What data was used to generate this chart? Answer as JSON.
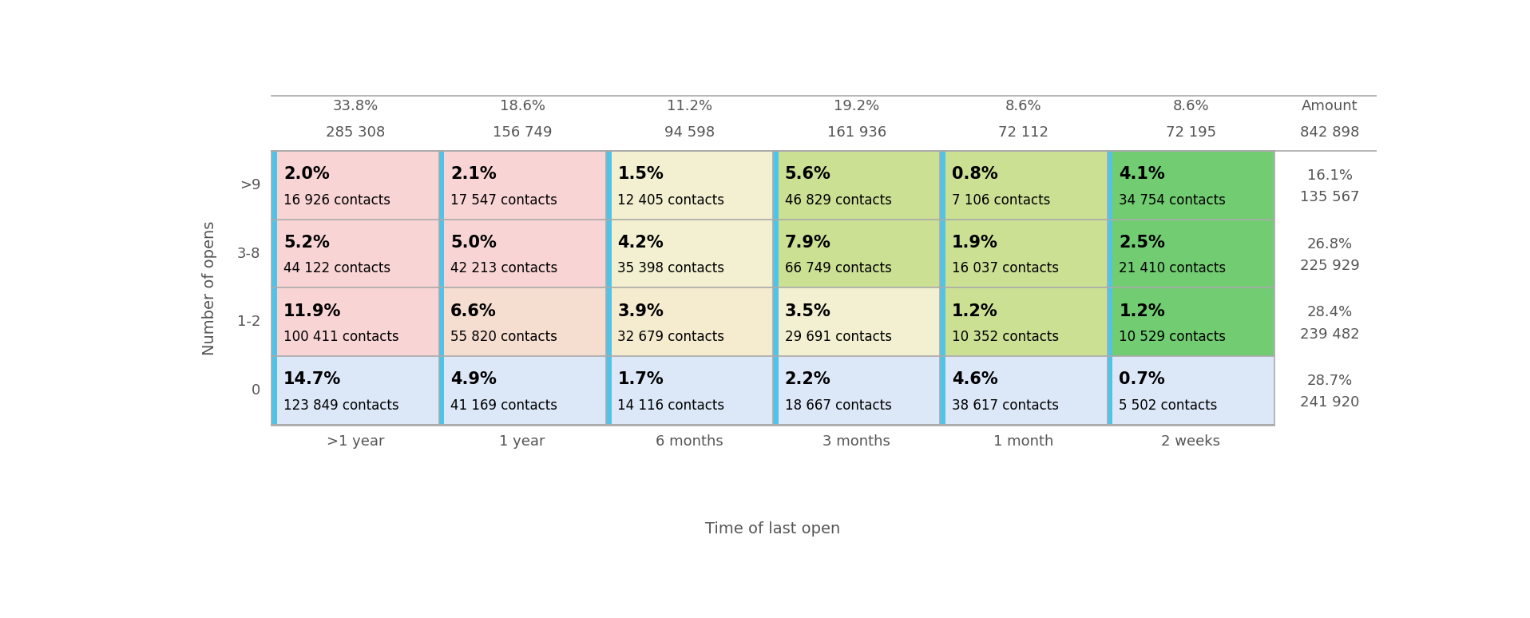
{
  "col_labels": [
    ">1 year",
    "1 year",
    "6 months",
    "3 months",
    "1 month",
    "2 weeks"
  ],
  "col_pcts": [
    "33.8%",
    "18.6%",
    "11.2%",
    "19.2%",
    "8.6%",
    "8.6%"
  ],
  "col_counts": [
    "285 308",
    "156 749",
    "94 598",
    "161 936",
    "72 112",
    "72 195"
  ],
  "col_amount_label": "Amount",
  "col_amount_count": "842 898",
  "row_labels": [
    ">9",
    "3-8",
    "1-2",
    "0"
  ],
  "row_amount_pcts": [
    "16.1%",
    "26.8%",
    "28.4%",
    "28.7%"
  ],
  "row_amount_counts": [
    "135 567",
    "225 929",
    "239 482",
    "241 920"
  ],
  "ylabel": "Number of opens",
  "xlabel": "Time of last open",
  "cells": [
    [
      {
        "pct": "2.0%",
        "contacts": "16 926 contacts",
        "bg": "#f9d4d5",
        "bar": "#4ec4ea"
      },
      {
        "pct": "2.1%",
        "contacts": "17 547 contacts",
        "bg": "#f9d4d5",
        "bar": "#4ec4ea"
      },
      {
        "pct": "1.5%",
        "contacts": "12 405 contacts",
        "bg": "#f2f0d0",
        "bar": "#4ec4ea"
      },
      {
        "pct": "5.6%",
        "contacts": "46 829 contacts",
        "bg": "#cce094",
        "bar": "#4ec4ea"
      },
      {
        "pct": "0.8%",
        "contacts": "7 106 contacts",
        "bg": "#cce094",
        "bar": "#4ec4ea"
      },
      {
        "pct": "4.1%",
        "contacts": "34 754 contacts",
        "bg": "#72cc72",
        "bar": "#4ec4ea"
      }
    ],
    [
      {
        "pct": "5.2%",
        "contacts": "44 122 contacts",
        "bg": "#f9d4d5",
        "bar": "#4ec4ea"
      },
      {
        "pct": "5.0%",
        "contacts": "42 213 contacts",
        "bg": "#f9d4d5",
        "bar": "#4ec4ea"
      },
      {
        "pct": "4.2%",
        "contacts": "35 398 contacts",
        "bg": "#f2f0d0",
        "bar": "#4ec4ea"
      },
      {
        "pct": "7.9%",
        "contacts": "66 749 contacts",
        "bg": "#cce094",
        "bar": "#4ec4ea"
      },
      {
        "pct": "1.9%",
        "contacts": "16 037 contacts",
        "bg": "#cce094",
        "bar": "#4ec4ea"
      },
      {
        "pct": "2.5%",
        "contacts": "21 410 contacts",
        "bg": "#72cc72",
        "bar": "#4ec4ea"
      }
    ],
    [
      {
        "pct": "11.9%",
        "contacts": "100 411 contacts",
        "bg": "#f9d4d5",
        "bar": "#4ec4ea"
      },
      {
        "pct": "6.6%",
        "contacts": "55 820 contacts",
        "bg": "#f5ddd0",
        "bar": "#4ec4ea"
      },
      {
        "pct": "3.9%",
        "contacts": "32 679 contacts",
        "bg": "#f5ecd0",
        "bar": "#4ec4ea"
      },
      {
        "pct": "3.5%",
        "contacts": "29 691 contacts",
        "bg": "#f2f0d0",
        "bar": "#4ec4ea"
      },
      {
        "pct": "1.2%",
        "contacts": "10 352 contacts",
        "bg": "#cce094",
        "bar": "#4ec4ea"
      },
      {
        "pct": "1.2%",
        "contacts": "10 529 contacts",
        "bg": "#72cc72",
        "bar": "#4ec4ea"
      }
    ],
    [
      {
        "pct": "14.7%",
        "contacts": "123 849 contacts",
        "bg": "#dce8f8",
        "bar": "#4ec4ea"
      },
      {
        "pct": "4.9%",
        "contacts": "41 169 contacts",
        "bg": "#dce8f8",
        "bar": "#4ec4ea"
      },
      {
        "pct": "1.7%",
        "contacts": "14 116 contacts",
        "bg": "#dce8f8",
        "bar": "#4ec4ea"
      },
      {
        "pct": "2.2%",
        "contacts": "18 667 contacts",
        "bg": "#dce8f8",
        "bar": "#4ec4ea"
      },
      {
        "pct": "4.6%",
        "contacts": "38 617 contacts",
        "bg": "#dce8f8",
        "bar": "#4ec4ea"
      },
      {
        "pct": "0.7%",
        "contacts": "5 502 contacts",
        "bg": "#dce8f8",
        "bar": "#4ec4ea"
      }
    ]
  ],
  "bg_color": "#ffffff",
  "grid_color": "#aaaaaa",
  "pct_fontsize": 15,
  "contact_fontsize": 12,
  "header_fontsize": 13,
  "rowlabel_fontsize": 13,
  "axis_label_fontsize": 14
}
